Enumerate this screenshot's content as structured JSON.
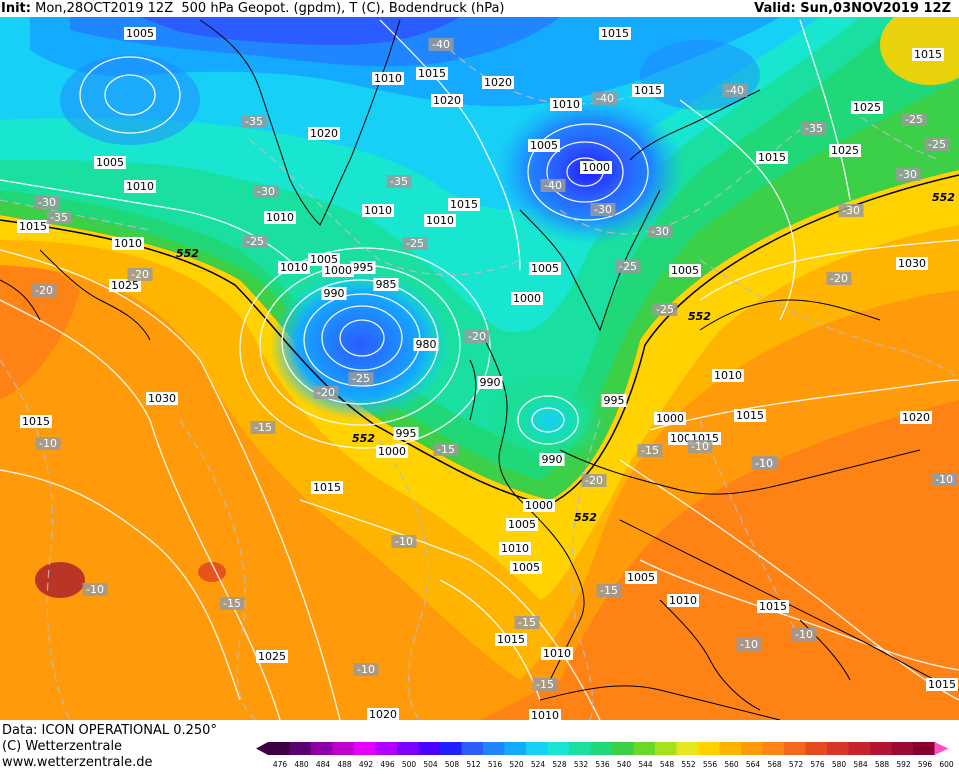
{
  "header": {
    "init_label": "Init:",
    "init_value": "Mon,28OCT2019 12Z",
    "product": "500 hPa Geopot. (gpdm), T (C), Bodendruck (hPa)",
    "valid": "Valid: Sun,03NOV2019 12Z"
  },
  "footer": {
    "data_line": "Data: ICON OPERATIONAL 0.250°",
    "copyright": "(C) Wetterzentrale",
    "website": "www.wetterzentrale.de"
  },
  "colorbar": {
    "ticks": [
      "476",
      "480",
      "484",
      "488",
      "492",
      "496",
      "500",
      "504",
      "508",
      "512",
      "516",
      "520",
      "524",
      "528",
      "532",
      "536",
      "540",
      "544",
      "548",
      "552",
      "556",
      "560",
      "564",
      "568",
      "572",
      "576",
      "580",
      "584",
      "588",
      "592",
      "596",
      "600"
    ],
    "colors": [
      "#3d0042",
      "#5a0070",
      "#8d00a8",
      "#c000d0",
      "#e600ff",
      "#b100ff",
      "#7d00ff",
      "#4c00ff",
      "#1f1fff",
      "#2a5cff",
      "#1f86ff",
      "#14aaff",
      "#17d0f5",
      "#19e6d0",
      "#19e0a0",
      "#20d878",
      "#3ccf48",
      "#6ad828",
      "#a6e11e",
      "#e6e61e",
      "#ffd200",
      "#ffb400",
      "#ff9b0a",
      "#ff8214",
      "#f5661e",
      "#e64b1e",
      "#d73728",
      "#c8232d",
      "#b41432",
      "#9b0a32",
      "#87002d",
      "#ff50c8"
    ]
  },
  "map": {
    "contour_552_label": "552",
    "pressure_labels": [
      "1005",
      "1015",
      "1015",
      "1010",
      "1015",
      "1020",
      "1020",
      "1015",
      "1010",
      "1005",
      "1000",
      "1010",
      "1015",
      "1015",
      "1025",
      "1025",
      "1005",
      "1010",
      "1010",
      "1010",
      "1015",
      "1010",
      "1010",
      "1005",
      "995",
      "1000",
      "1005",
      "1005",
      "1030",
      "985",
      "990",
      "1000",
      "1020",
      "1025",
      "980",
      "1030",
      "990",
      "995",
      "1010",
      "1000",
      "1015",
      "990",
      "1015",
      "1005",
      "1015",
      "1020",
      "1000",
      "995",
      "1015",
      "1000",
      "1005",
      "1005",
      "1010",
      "1005",
      "1010",
      "1015",
      "1015",
      "1010",
      "1025",
      "1010",
      "1020",
      "1015"
    ],
    "temperature_labels": [
      "-40",
      "-40",
      "-40",
      "-40",
      "-35",
      "-35",
      "-25",
      "-30",
      "-30",
      "-25",
      "-35",
      "-30",
      "-35",
      "-30",
      "-30",
      "-25",
      "-30",
      "-25",
      "-25",
      "-25",
      "-20",
      "-20",
      "-20",
      "-25",
      "-20",
      "-20",
      "-15",
      "-20",
      "-15",
      "-15",
      "-15",
      "-15",
      "-10",
      "-10",
      "-15",
      "-10",
      "-15",
      "-15",
      "-10",
      "-10",
      "-10",
      "-15",
      "-10",
      "-10",
      "-10"
    ]
  }
}
